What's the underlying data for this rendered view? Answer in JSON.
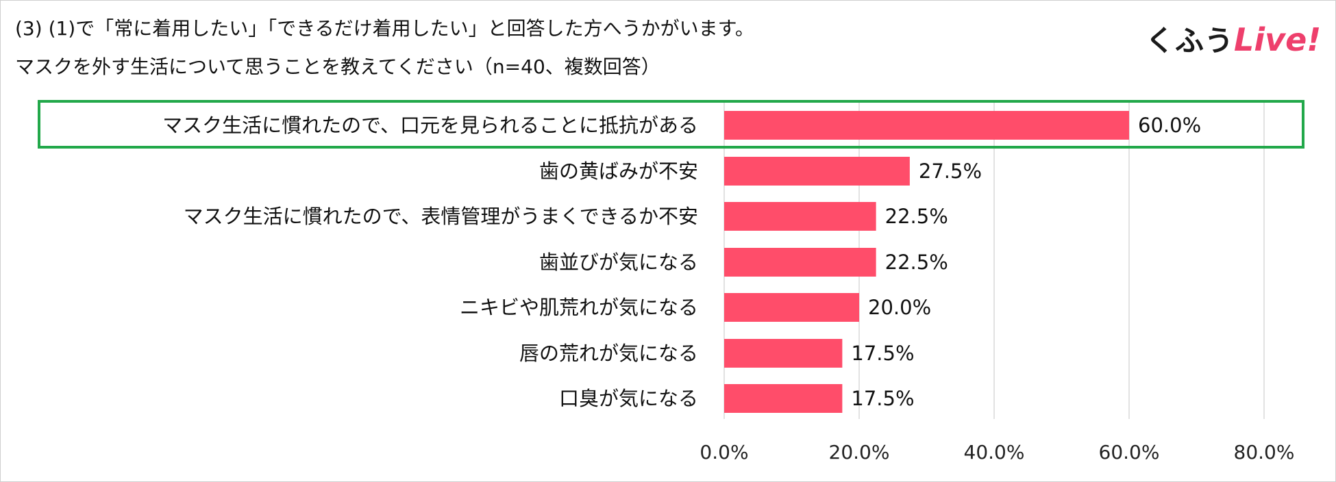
{
  "title_lines": [
    "(3) (1)で「常に着用したい」「できるだけ着用したい」と回答した方へうかがいます。",
    "マスクを外す生活について思うことを教えてください（n=40、複数回答）"
  ],
  "logo": {
    "jp_text": "くふう",
    "live_text": "Live!",
    "accent_color": "#ee3f6c"
  },
  "colors": {
    "bar": "#ff4d6a",
    "highlight_border": "#22a84a",
    "grid": "#d9d9d9"
  },
  "chart_data": {
    "type": "bar",
    "orientation": "horizontal",
    "categories": [
      "マスク生活に慣れたので、口元を見られることに抵抗がある",
      "歯の黄ばみが不安",
      "マスク生活に慣れたので、表情管理がうまくできるか不安",
      "歯並びが気になる",
      "ニキビや肌荒れが気になる",
      "唇の荒れが気になる",
      "口臭が気になる"
    ],
    "values": [
      60.0,
      27.5,
      22.5,
      22.5,
      20.0,
      17.5,
      17.5
    ],
    "value_labels": [
      "60.0%",
      "27.5%",
      "22.5%",
      "22.5%",
      "20.0%",
      "17.5%",
      "17.5%"
    ],
    "xlim": [
      0,
      80
    ],
    "x_ticks": [
      "0.0%",
      "20.0%",
      "40.0%",
      "60.0%",
      "80.0%"
    ],
    "grid": true,
    "highlighted_category": "マスク生活に慣れたので、口元を見られることに抵抗がある"
  }
}
